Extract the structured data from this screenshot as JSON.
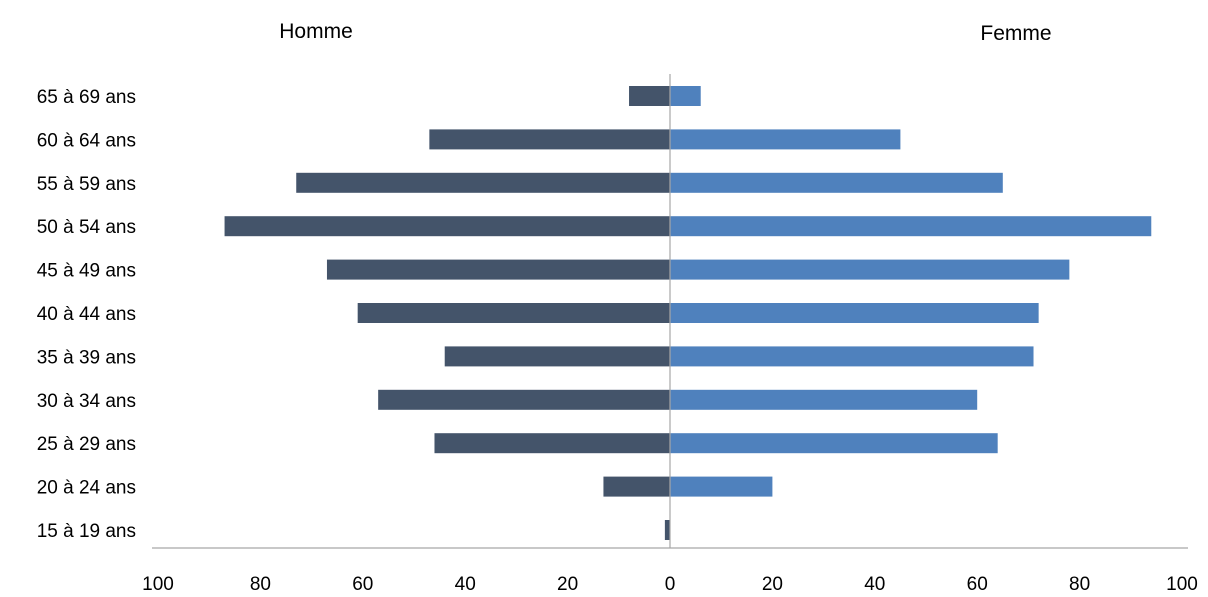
{
  "chart_data": {
    "type": "bar",
    "orientation": "horizontal",
    "layout": "population-pyramid",
    "categories": [
      "15 à 19 ans",
      "20 à 24 ans",
      "25 à 29 ans",
      "30 à 34 ans",
      "35 à 39 ans",
      "40 à 44 ans",
      "45 à 49 ans",
      "50 à 54 ans",
      "55 à 59 ans",
      "60 à 64 ans",
      "65 à 69 ans"
    ],
    "series": [
      {
        "name": "Homme",
        "side": "left",
        "color": "#44546a",
        "values": [
          1,
          13,
          46,
          57,
          44,
          61,
          67,
          87,
          73,
          47,
          8
        ]
      },
      {
        "name": "Femme",
        "side": "right",
        "color": "#4f81bd",
        "values": [
          0,
          20,
          64,
          60,
          71,
          72,
          78,
          94,
          65,
          45,
          6
        ]
      }
    ],
    "xlim": [
      -100,
      100
    ],
    "x_ticks": [
      -100,
      -80,
      -60,
      -40,
      -20,
      0,
      20,
      40,
      60,
      80,
      100
    ],
    "x_tick_labels": [
      "100",
      "80",
      "60",
      "40",
      "20",
      "0",
      "20",
      "40",
      "60",
      "80",
      "100"
    ],
    "title": "",
    "xlabel": "",
    "ylabel": "",
    "grid": false,
    "legend": "none",
    "axis_color": "#a6a6a6"
  }
}
